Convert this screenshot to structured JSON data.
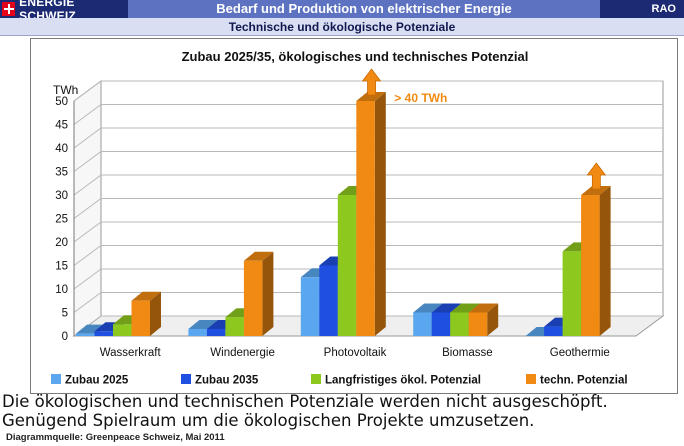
{
  "header": {
    "brand": "ENERGIE SCHWEIZ",
    "title": "Bedarf und Produktion von elektrischer Energie",
    "code": "RAO",
    "subtitle": "Technische und ökologische Potenziale"
  },
  "colors": {
    "header_bg": "#1b2a73",
    "title_bg": "#5d73c2",
    "swiss_red": "#e2001a"
  },
  "chart_data": {
    "type": "bar",
    "title": "Zubau 2025/35, ökologisches und technisches Potenzial",
    "ylabel": "TWh",
    "ylim": [
      0,
      50
    ],
    "yticks": [
      0,
      5,
      10,
      15,
      20,
      25,
      30,
      35,
      40,
      45,
      50
    ],
    "grid": true,
    "categories": [
      "Wasserkraft",
      "Windenergie",
      "Photovoltaik",
      "Biomasse",
      "Geothermie"
    ],
    "series": [
      {
        "name": "Zubau 2025",
        "color": "#5aa7f0",
        "values": [
          0.5,
          1.5,
          12.5,
          5,
          0
        ]
      },
      {
        "name": "Zubau 2035",
        "color": "#1f4fe0",
        "values": [
          1,
          1.5,
          15,
          5,
          2
        ]
      },
      {
        "name": "Langfristiges ökol. Potenzial",
        "color": "#8dc81e",
        "values": [
          2.5,
          4,
          30,
          5,
          18
        ]
      },
      {
        "name": "techn. Potenzial",
        "color": "#f08a12",
        "values": [
          7.5,
          16,
          50,
          5,
          30
        ]
      }
    ],
    "arrows": [
      {
        "category": "Photovoltaik",
        "series": "techn. Potenzial"
      },
      {
        "category": "Geothermie",
        "series": "techn. Potenzial"
      }
    ],
    "annotation": "> 40 TWh",
    "legend_position": "bottom"
  },
  "caption": {
    "line1": "Die ökologischen und technischen Potenziale werden nicht ausgeschöpft.",
    "line2": "Genügend Spielraum um die ökologischen Projekte umzusetzen."
  },
  "source": "Diagrammquelle: Greenpeace Schweiz, Mai 2011"
}
